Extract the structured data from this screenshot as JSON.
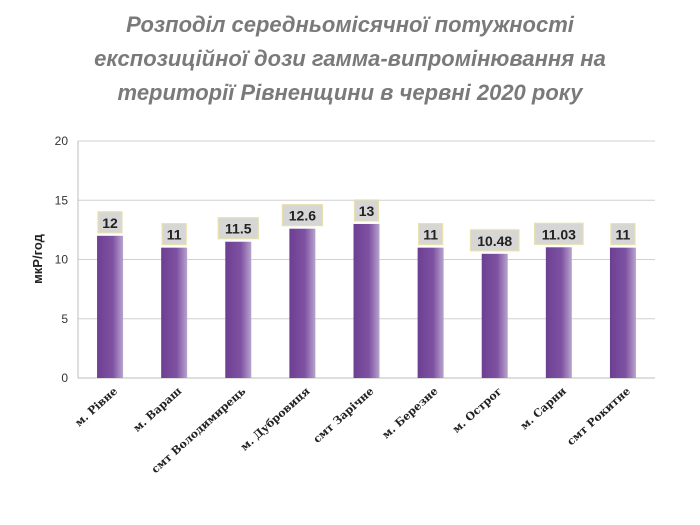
{
  "chart_data": {
    "type": "bar",
    "title_lines": [
      "Розподіл середньомісячної потужності",
      "експозиційної дози гамма-випромінювання на",
      "території Рівненщини в червні 2020 року"
    ],
    "ylabel": "мкР/год",
    "xlabel": "",
    "ylim": [
      0,
      20
    ],
    "yticks": [
      "0",
      "5",
      "10",
      "15",
      "20"
    ],
    "categories": [
      "м. Рівне",
      "м. Вараш",
      "смт Володимирець",
      "м. Дубровиця",
      "смт Зарічне",
      "м. Березне",
      "м. Острог",
      "м. Сарни",
      "смт Рокитне"
    ],
    "values": [
      12,
      11,
      11.5,
      12.6,
      13,
      11,
      10.48,
      11.03,
      11
    ],
    "data_labels": [
      "12",
      "11",
      "11.5",
      "12.6",
      "13",
      "11",
      "10.48",
      "11.03",
      "11"
    ],
    "bar_color": "#7b4f9e",
    "grid": true,
    "legend": "none"
  }
}
